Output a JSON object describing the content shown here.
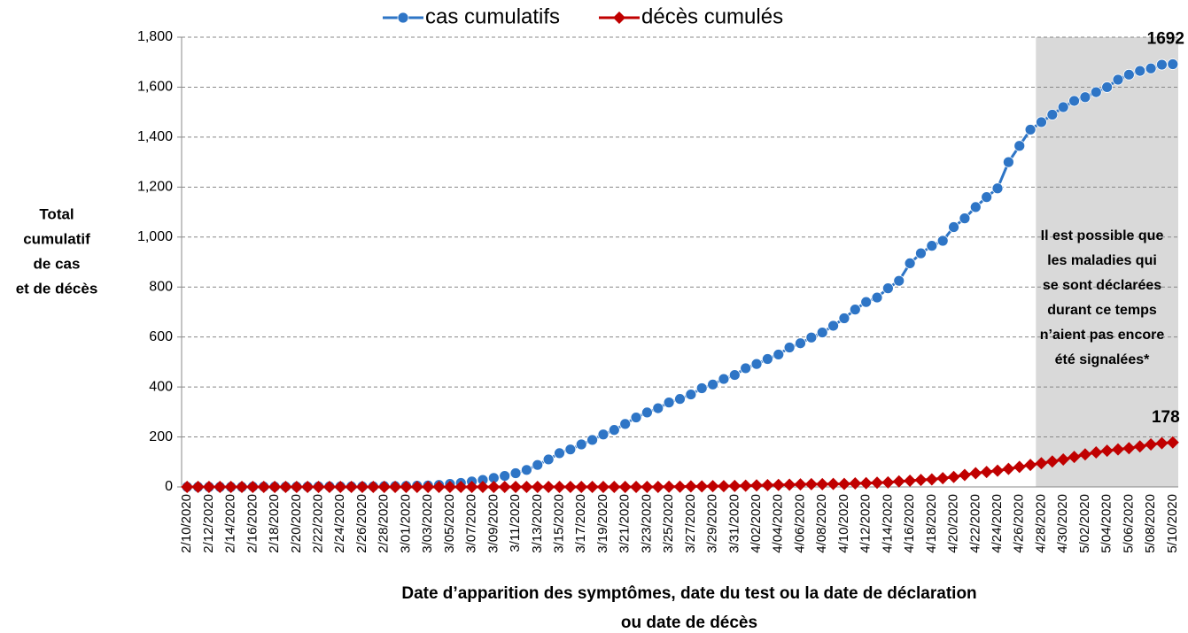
{
  "chart_data": {
    "type": "line",
    "y_axis_title": [
      "Total",
      "cumulatif",
      "de cas",
      "et de décès"
    ],
    "x_axis_title": [
      "Date d’apparition des symptômes, date du test ou la date de déclaration",
      "ou date de décès"
    ],
    "annotation": [
      "Il est possible que",
      "les maladies qui",
      "se sont déclarées",
      "durant ce temps",
      "n’aient pas encore",
      "été signalées*"
    ],
    "categories": [
      "2/10/2020",
      null,
      "2/12/2020",
      null,
      "2/14/2020",
      null,
      "2/16/2020",
      null,
      "2/18/2020",
      null,
      "2/20/2020",
      null,
      "2/22/2020",
      null,
      "2/24/2020",
      null,
      "2/26/2020",
      null,
      "2/28/2020",
      null,
      "3/01/2020",
      null,
      "3/03/2020",
      null,
      "3/05/2020",
      null,
      "3/07/2020",
      null,
      "3/09/2020",
      null,
      "3/11/2020",
      null,
      "3/13/2020",
      null,
      "3/15/2020",
      null,
      "3/17/2020",
      null,
      "3/19/2020",
      null,
      "3/21/2020",
      null,
      "3/23/2020",
      null,
      "3/25/2020",
      null,
      "3/27/2020",
      null,
      "3/29/2020",
      null,
      "3/31/2020",
      null,
      "4/02/2020",
      null,
      "4/04/2020",
      null,
      "4/06/2020",
      null,
      "4/08/2020",
      null,
      "4/10/2020",
      null,
      "4/12/2020",
      null,
      "4/14/2020",
      null,
      "4/16/2020",
      null,
      "4/18/2020",
      null,
      "4/20/2020",
      null,
      "4/22/2020",
      null,
      "4/24/2020",
      null,
      "4/26/2020",
      null,
      "4/28/2020",
      null,
      "4/30/2020",
      null,
      "5/02/2020",
      null,
      "5/04/2020",
      null,
      "5/06/2020",
      null,
      "5/08/2020",
      null,
      "5/10/2020"
    ],
    "series": [
      {
        "name": "cas cumulatifs",
        "color": "#2e75c6",
        "marker": "circle",
        "values": [
          0,
          0,
          0,
          0,
          0,
          0,
          1,
          1,
          1,
          1,
          1,
          1,
          2,
          2,
          2,
          2,
          2,
          2,
          3,
          3,
          4,
          5,
          6,
          8,
          12,
          16,
          22,
          28,
          36,
          44,
          55,
          68,
          88,
          110,
          135,
          150,
          170,
          188,
          210,
          228,
          252,
          278,
          298,
          315,
          338,
          352,
          370,
          395,
          410,
          432,
          448,
          475,
          492,
          512,
          530,
          558,
          575,
          598,
          618,
          645,
          675,
          710,
          740,
          758,
          795,
          825,
          895,
          935,
          965,
          985,
          1040,
          1075,
          1120,
          1160,
          1195,
          1300,
          1365,
          1430,
          1460,
          1490,
          1520,
          1545,
          1560,
          1580,
          1600,
          1630,
          1650,
          1665,
          1675,
          1690,
          1692
        ]
      },
      {
        "name": "décès cumulés",
        "color": "#c00000",
        "marker": "diamond",
        "values": [
          0,
          0,
          0,
          0,
          0,
          0,
          0,
          0,
          0,
          0,
          0,
          0,
          0,
          0,
          0,
          0,
          0,
          0,
          0,
          0,
          0,
          0,
          0,
          0,
          0,
          0,
          0,
          0,
          0,
          0,
          0,
          0,
          0,
          0,
          0,
          0,
          0,
          0,
          0,
          0,
          0,
          0,
          0,
          0,
          1,
          1,
          2,
          2,
          3,
          3,
          4,
          5,
          6,
          7,
          8,
          9,
          10,
          11,
          11,
          12,
          12,
          14,
          15,
          17,
          18,
          22,
          25,
          28,
          30,
          35,
          40,
          48,
          55,
          60,
          65,
          72,
          80,
          88,
          95,
          102,
          110,
          120,
          130,
          138,
          145,
          150,
          155,
          162,
          170,
          175,
          178
        ]
      }
    ],
    "end_labels": true,
    "ylim": [
      0,
      1800
    ],
    "yticks": [
      0,
      200,
      400,
      600,
      800,
      {
        "value": 1000,
        "label": "1,000"
      },
      {
        "value": 1200,
        "label": "1,200"
      },
      {
        "value": 1400,
        "label": "1,400"
      },
      {
        "value": 1600,
        "label": "1,600"
      },
      {
        "value": 1800,
        "label": "1,800"
      }
    ],
    "grid": true,
    "legend": "top"
  }
}
